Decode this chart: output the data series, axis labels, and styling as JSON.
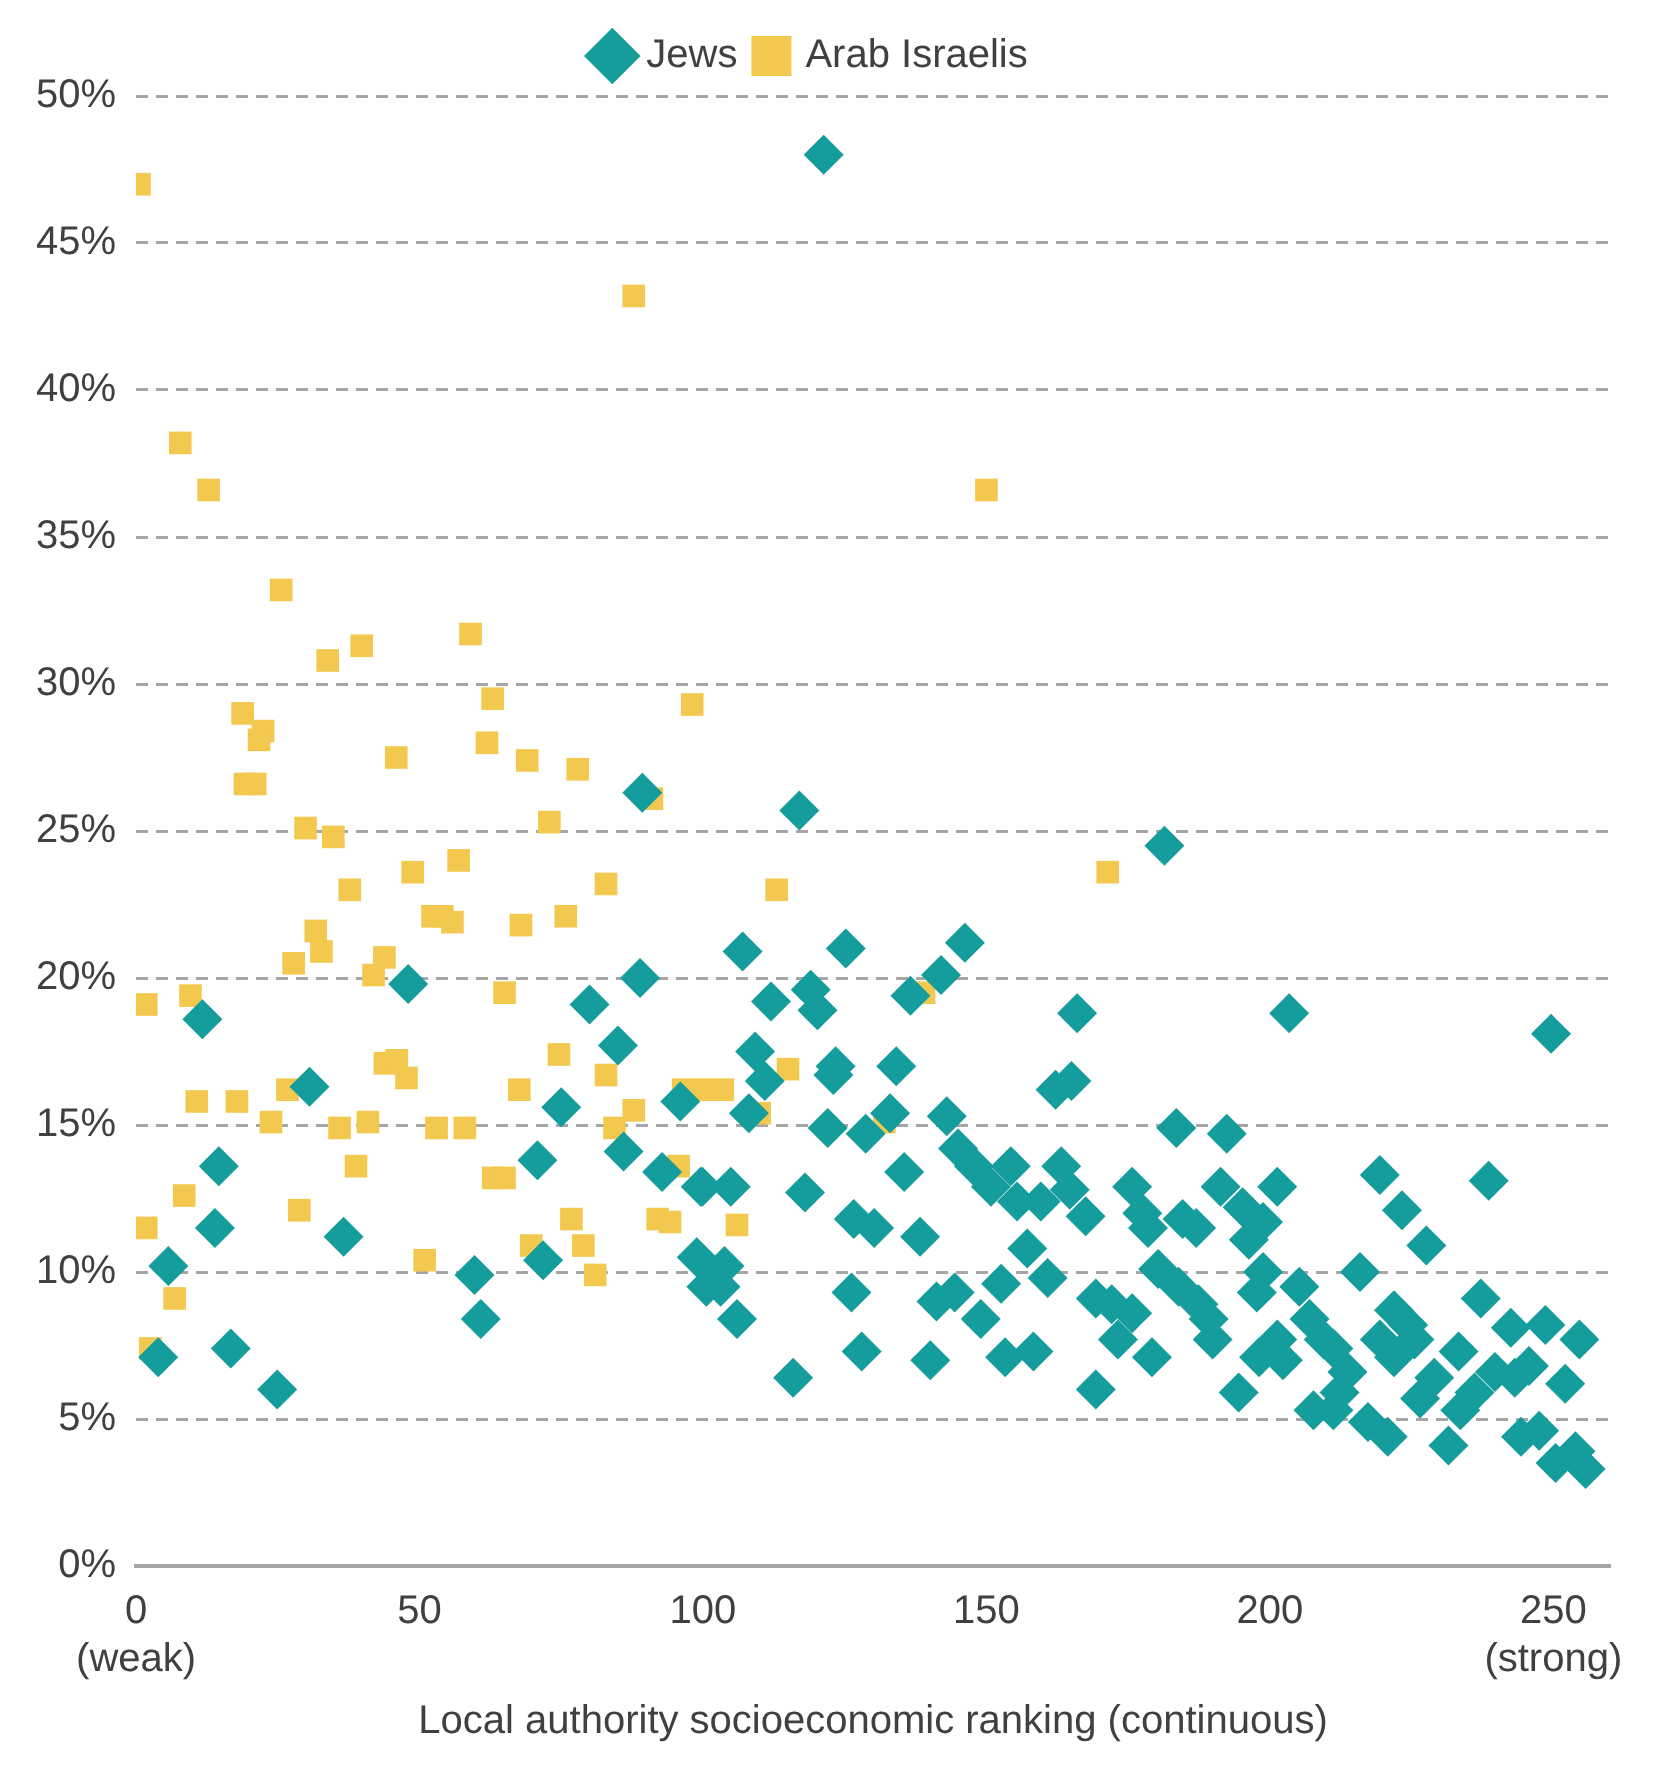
{
  "chart_data": {
    "type": "scatter",
    "xlabel": "Local authority socioeconomic ranking (continuous)",
    "xlim": [
      0,
      260
    ],
    "xticks": [
      {
        "value": 0,
        "label": "0\n(weak)"
      },
      50,
      100,
      150,
      200,
      {
        "value": 250,
        "label": "250\n(strong)"
      }
    ],
    "ylim": [
      0,
      50
    ],
    "yticks": [
      {
        "value": 0,
        "label": "0%"
      },
      {
        "value": 5,
        "label": "5%"
      },
      {
        "value": 10,
        "label": "10%"
      },
      {
        "value": 15,
        "label": "15%"
      },
      {
        "value": 20,
        "label": "20%"
      },
      {
        "value": 25,
        "label": "25%"
      },
      {
        "value": 30,
        "label": "30%"
      },
      {
        "value": 35,
        "label": "35%"
      },
      {
        "value": 40,
        "label": "40%"
      },
      {
        "value": 45,
        "label": "45%"
      },
      {
        "value": 50,
        "label": "50%"
      }
    ],
    "grid": "y",
    "legend": "top",
    "series": [
      {
        "name": "Jews",
        "color": "#159c9c",
        "marker": "diamond",
        "x": [
          121.3,
          89.3,
          117,
          181.4,
          3.9,
          11.7,
          14.6,
          13.9,
          5.7,
          16.7,
          24.9,
          30.6,
          36.6,
          48,
          59.7,
          60.8,
          70.8,
          71.8,
          75,
          80,
          85,
          88.9,
          86,
          92.8,
          96,
          99.6,
          98.9,
          100.6,
          107,
          125.2,
          146.2,
          112,
          119,
          120.2,
          142,
          136.6,
          166,
          203.4,
          249.6,
          109.2,
          110.9,
          108.1,
          123.4,
          123,
          134.1,
          162.2,
          165,
          122,
          128.7,
          133,
          143,
          183.5,
          192.4,
          99.9,
          104.9,
          118,
          135.5,
          145,
          147.8,
          154.3,
          150.8,
          155.4,
          159.6,
          163.2,
          164.7,
          167.5,
          175.7,
          177.5,
          178.5,
          184.6,
          187,
          191.3,
          195.2,
          201.3,
          198.8,
          196.3,
          219.4,
          238.6,
          223.3,
          227.6,
          103.8,
          103.1,
          106,
          126.2,
          128,
          115.9,
          141.2,
          144.4,
          149,
          138.3,
          126.6,
          130.2,
          140.1,
          153.3,
          158.3,
          157.2,
          152.6,
          160.8,
          169.3,
          172.1,
          175.7,
          173.2,
          179.2,
          169.3,
          180.3,
          183.9,
          187.4,
          189.2,
          189.9,
          194.5,
          198.8,
          197.7,
          205.2,
          201.3,
          198.1,
          202.3,
          207,
          209.5,
          211.2,
          213.7,
          212.3,
          211.2,
          215.9,
          221.9,
          224.4,
          219.4,
          221.9,
          225.5,
          217.3,
          220.8,
          231.5,
          226.5,
          229,
          233.3,
          237.2,
          236.1,
          239.7,
          242.5,
          248.6,
          254.6,
          245.7,
          243.2,
          252.1,
          244.3,
          247.5,
          250.4,
          255.7,
          253.9,
          233.6,
          207.7
        ],
        "values": [
          48,
          26.3,
          25.7,
          24.5,
          7.1,
          18.6,
          13.6,
          11.5,
          10.2,
          7.4,
          6,
          16.3,
          11.2,
          19.8,
          9.9,
          8.4,
          13.8,
          10.4,
          15.6,
          19.1,
          17.7,
          20,
          14.1,
          13.4,
          15.8,
          12.9,
          10.5,
          9.5,
          20.9,
          21,
          21.2,
          19.2,
          19.6,
          18.9,
          20.1,
          19.4,
          18.8,
          18.8,
          18.1,
          17.5,
          16.5,
          15.4,
          17,
          16.7,
          17,
          16.2,
          16.5,
          14.9,
          14.7,
          15.4,
          15.3,
          14.9,
          14.7,
          12.9,
          12.9,
          12.7,
          13.4,
          14.2,
          13.6,
          13.6,
          12.9,
          12.4,
          12.4,
          13.6,
          12.8,
          11.9,
          12.9,
          12,
          11.5,
          11.8,
          11.5,
          12.9,
          12.2,
          12.9,
          11.7,
          11.1,
          13.3,
          13.1,
          12.1,
          10.9,
          10.2,
          9.5,
          8.4,
          9.3,
          7.3,
          6.4,
          9,
          9.3,
          8.4,
          11.2,
          11.8,
          11.5,
          7,
          7.1,
          7.3,
          10.8,
          9.6,
          9.8,
          9.1,
          8.9,
          8.6,
          7.7,
          7.1,
          6,
          10.1,
          9.5,
          8.9,
          8.4,
          7.7,
          5.9,
          10,
          9.3,
          9.5,
          7.7,
          7.1,
          7,
          8.4,
          7.7,
          7.4,
          6.6,
          5.9,
          5.3,
          10,
          8.7,
          8.2,
          7.7,
          7.1,
          7.7,
          4.9,
          4.4,
          4.1,
          5.7,
          6.4,
          7.3,
          9.1,
          5.9,
          6.6,
          8.1,
          8.2,
          7.7,
          6.8,
          6.4,
          6.2,
          4.4,
          4.6,
          3.5,
          3.3,
          3.9,
          5.3,
          5.3
        ]
      },
      {
        "name": "Arab Israelis",
        "color": "#f2c84e",
        "marker": "square",
        "x": [
          0.6,
          7.8,
          12.8,
          25.6,
          33.8,
          39.8,
          59,
          62.9,
          98.1,
          87.8,
          150,
          18.8,
          22.4,
          21.7,
          61.9,
          45.9,
          69,
          77.9,
          19.2,
          21,
          91,
          72.9,
          29.9,
          34.8,
          56.9,
          48.8,
          37.7,
          82.9,
          113,
          171.4,
          31.7,
          32.7,
          27.8,
          43.8,
          41.9,
          52.3,
          54,
          55.8,
          67.9,
          75.8,
          1.8,
          9.6,
          65,
          139,
          43.9,
          46,
          47.7,
          67.6,
          74.6,
          82.9,
          87.8,
          84.4,
          96.5,
          100,
          103.5,
          10.7,
          17.8,
          26.7,
          23.8,
          35.9,
          40.9,
          38.8,
          28.8,
          1.8,
          8.5,
          6.8,
          2.5,
          53,
          58,
          63,
          65,
          50.9,
          69.7,
          76.8,
          78.9,
          81,
          92,
          94.2,
          115,
          110,
          132,
          95.7,
          106
        ],
        "values": [
          47,
          38.2,
          36.6,
          33.2,
          30.8,
          31.3,
          31.7,
          29.5,
          29.3,
          43.2,
          36.6,
          29,
          28.4,
          28.1,
          28,
          27.5,
          27.4,
          27.1,
          26.6,
          26.6,
          26.1,
          25.3,
          25.1,
          24.8,
          24,
          23.6,
          23,
          23.2,
          23,
          23.6,
          21.6,
          20.9,
          20.5,
          20.7,
          20.1,
          22.1,
          22.1,
          21.9,
          21.8,
          22.1,
          19.1,
          19.4,
          19.5,
          19.5,
          17.1,
          17.2,
          16.6,
          16.2,
          17.4,
          16.7,
          15.5,
          14.9,
          16.2,
          16.2,
          16.2,
          15.8,
          15.8,
          16.2,
          15.1,
          14.9,
          15.1,
          13.6,
          12.1,
          11.5,
          12.6,
          9.1,
          7.4,
          14.9,
          14.9,
          13.2,
          13.2,
          10.4,
          10.9,
          11.8,
          10.9,
          9.9,
          11.8,
          11.7,
          16.9,
          15.4,
          15.1,
          13.6,
          11.6
        ]
      }
    ]
  }
}
